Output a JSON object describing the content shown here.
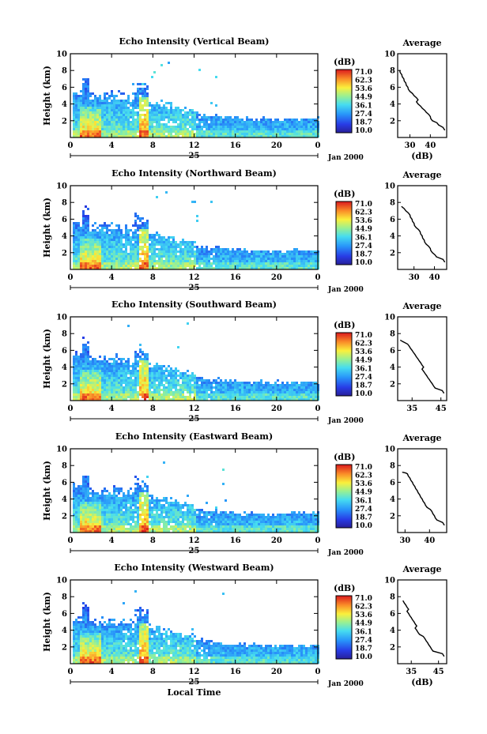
{
  "figure": {
    "colorbar_unit": "(dB)",
    "colorbar_ticks": [
      "71.0",
      "62.3",
      "53.6",
      "44.9",
      "36.1",
      "27.4",
      "18.7",
      "10.0"
    ],
    "colorbar_range": [
      10.0,
      71.0
    ],
    "day_label": "25",
    "month_label": "Jan 2000",
    "y_axis_label": "Height (km)",
    "x_axis_label": "Local Time",
    "profile_title": "Average",
    "profile_unit_label": "(dB)"
  },
  "chart_data": [
    {
      "type": "heatmap",
      "title": "Echo Intensity (Vertical Beam)",
      "ylabel": "Height (km)",
      "x_ticks": [
        "0",
        "4",
        "8",
        "12",
        "16",
        "20",
        "0"
      ],
      "y_ticks": [
        "10",
        "8",
        "6",
        "4",
        "2"
      ],
      "xlim": [
        0,
        24
      ],
      "ylim": [
        0,
        10
      ],
      "profile": {
        "title": "Average",
        "x_ticks": [
          "30",
          "40"
        ],
        "xlim": [
          24,
          48
        ],
        "heights": [
          0.9,
          1.5,
          2.0,
          2.5,
          3.0,
          3.5,
          4.0,
          4.5,
          5.0,
          5.5,
          6.0,
          6.5,
          7.0,
          7.5,
          8.0
        ],
        "values": [
          47,
          44,
          41,
          40,
          38,
          36,
          34,
          34,
          32,
          30,
          29,
          28,
          27,
          26,
          25
        ]
      }
    },
    {
      "type": "heatmap",
      "title": "Echo Intensity (Northward Beam)",
      "ylabel": "Height (km)",
      "x_ticks": [
        "0",
        "4",
        "8",
        "12",
        "16",
        "20",
        "0"
      ],
      "y_ticks": [
        "10",
        "8",
        "6",
        "4",
        "2"
      ],
      "xlim": [
        0,
        24
      ],
      "ylim": [
        0,
        10
      ],
      "profile": {
        "title": "Average",
        "x_ticks": [
          "30",
          "40"
        ],
        "xlim": [
          22,
          46
        ],
        "heights": [
          0.9,
          1.5,
          2.0,
          2.5,
          3.0,
          3.5,
          4.0,
          4.5,
          5.0,
          5.5,
          6.0,
          6.5,
          7.0,
          7.5
        ],
        "values": [
          45,
          41,
          39,
          38,
          36,
          35,
          34,
          33,
          31,
          30,
          29,
          28,
          26,
          24
        ]
      }
    },
    {
      "type": "heatmap",
      "title": "Echo Intensity (Southward Beam)",
      "ylabel": "Height (km)",
      "x_ticks": [
        "35",
        "45"
      ],
      "x_ticks_main": [
        "0",
        "4",
        "8",
        "12",
        "16",
        "20",
        "0"
      ],
      "y_ticks": [
        "10",
        "8",
        "6",
        "4",
        "2"
      ],
      "xlim": [
        0,
        24
      ],
      "ylim": [
        0,
        10
      ],
      "profile": {
        "title": "Average",
        "x_ticks": [
          "35",
          "45"
        ],
        "xlim": [
          30,
          47
        ],
        "heights": [
          0.9,
          1.5,
          2.0,
          2.5,
          3.0,
          3.5,
          4.0,
          4.5,
          5.0,
          5.5,
          6.0,
          6.5,
          7.0,
          7.2
        ],
        "values": [
          46,
          43,
          42,
          41,
          40,
          39,
          39,
          38,
          37,
          36,
          35,
          34,
          32,
          31
        ]
      }
    },
    {
      "type": "heatmap",
      "title": "Echo Intensity (Eastward Beam)",
      "ylabel": "Height (km)",
      "x_ticks": [
        "0",
        "4",
        "8",
        "12",
        "16",
        "20",
        "0"
      ],
      "y_ticks": [
        "10",
        "8",
        "6",
        "4",
        "2"
      ],
      "xlim": [
        0,
        24
      ],
      "ylim": [
        0,
        10
      ],
      "profile": {
        "title": "Average",
        "x_ticks": [
          "30",
          "40"
        ],
        "xlim": [
          27,
          47
        ],
        "heights": [
          0.9,
          1.5,
          2.0,
          2.5,
          3.0,
          3.5,
          4.0,
          4.5,
          5.0,
          5.5,
          6.0,
          6.5,
          7.0,
          7.2
        ],
        "values": [
          46,
          43,
          42,
          41,
          39,
          38,
          37,
          36,
          35,
          34,
          33,
          32,
          31,
          29
        ]
      }
    },
    {
      "type": "heatmap",
      "title": "Echo Intensity (Westward Beam)",
      "ylabel": "Height (km)",
      "x_ticks": [
        "0",
        "4",
        "8",
        "12",
        "16",
        "20",
        "0"
      ],
      "y_ticks": [
        "10",
        "8",
        "6",
        "4",
        "2"
      ],
      "xlim": [
        0,
        24
      ],
      "ylim": [
        0,
        10
      ],
      "profile": {
        "title": "Average",
        "x_ticks": [
          "35",
          "45"
        ],
        "xlim": [
          30,
          48
        ],
        "heights": [
          0.9,
          1.5,
          2.0,
          2.5,
          3.0,
          3.5,
          4.0,
          4.5,
          5.0,
          5.5,
          6.0,
          6.5,
          7.0,
          7.5
        ],
        "values": [
          47,
          43,
          42,
          41,
          40,
          38,
          37,
          37,
          36,
          35,
          34,
          34,
          33,
          32
        ]
      }
    }
  ]
}
